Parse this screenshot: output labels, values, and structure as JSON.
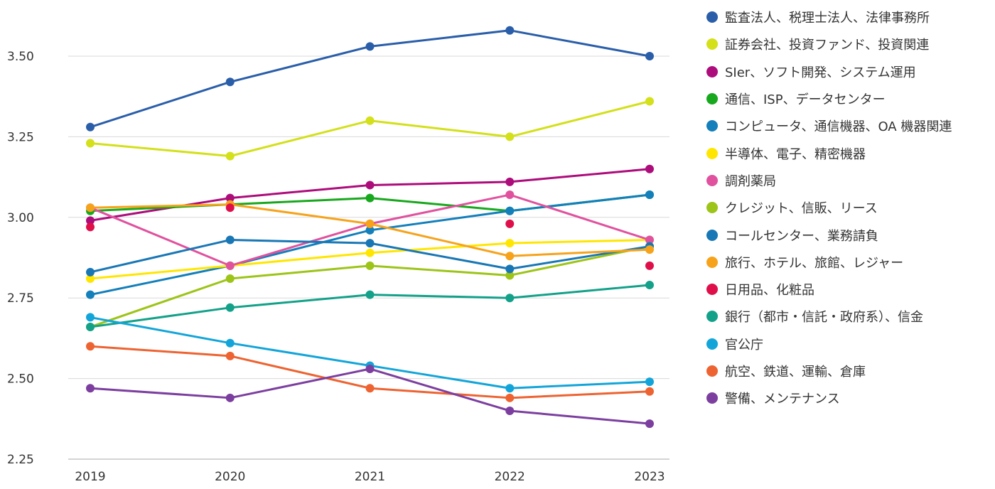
{
  "chart_data": {
    "type": "line",
    "x": [
      "2019",
      "2020",
      "2021",
      "2022",
      "2023"
    ],
    "ylim": [
      2.25,
      3.65
    ],
    "yticks": [
      "2.25",
      "2.50",
      "2.75",
      "3.00",
      "3.25",
      "3.50"
    ],
    "grid": "horizontal",
    "legend_position": "right",
    "series": [
      {
        "name": "監査法人、税理士法人、法律事務所",
        "color": "#2a5ea9",
        "values": [
          3.28,
          3.42,
          3.53,
          3.58,
          3.5
        ]
      },
      {
        "name": "証券会社、投資ファンド、投資関連",
        "color": "#d3e01a",
        "values": [
          3.23,
          3.19,
          3.3,
          3.25,
          3.36
        ]
      },
      {
        "name": "SIer、ソフト開発、システム運用",
        "color": "#ad0c7b",
        "values": [
          2.99,
          3.06,
          3.1,
          3.11,
          3.15
        ]
      },
      {
        "name": "通信、ISP、データセンター",
        "color": "#18a81d",
        "values": [
          3.02,
          3.04,
          3.06,
          3.02,
          3.07
        ]
      },
      {
        "name": "コンピュータ、通信機器、OA 機器関連",
        "color": "#137fbb",
        "values": [
          2.76,
          2.85,
          2.96,
          3.02,
          3.07
        ]
      },
      {
        "name": "半導体、電子、精密機器",
        "color": "#ffe600",
        "values": [
          2.81,
          2.85,
          2.89,
          2.92,
          2.93
        ]
      },
      {
        "name": "調剤薬局",
        "color": "#e0529e",
        "values": [
          3.03,
          2.85,
          2.98,
          3.07,
          2.93
        ]
      },
      {
        "name": "クレジット、信販、リース",
        "color": "#9dc418",
        "values": [
          2.66,
          2.81,
          2.85,
          2.82,
          2.91
        ]
      },
      {
        "name": "コールセンター、業務請負",
        "color": "#1977b5",
        "values": [
          2.83,
          2.93,
          2.92,
          2.84,
          2.91
        ]
      },
      {
        "name": "旅行、ホテル、旅館、レジャー",
        "color": "#f6a31b",
        "values": [
          3.03,
          3.04,
          2.98,
          2.88,
          2.9
        ]
      },
      {
        "name": "日用品、化粧品",
        "color": "#df0f4a",
        "values": [
          2.97,
          3.03,
          null,
          2.98,
          2.85
        ]
      },
      {
        "name": "銀行（都市・信託・政府系）、信金",
        "color": "#13a18a",
        "values": [
          2.66,
          2.72,
          2.76,
          2.75,
          2.79
        ]
      },
      {
        "name": "官公庁",
        "color": "#13a5d9",
        "values": [
          2.69,
          2.61,
          2.54,
          2.47,
          2.49
        ]
      },
      {
        "name": "航空、鉄道、運輸、倉庫",
        "color": "#ed6331",
        "values": [
          2.6,
          2.57,
          2.47,
          2.44,
          2.46
        ]
      },
      {
        "name": "警備、メンテナンス",
        "color": "#7c3f9f",
        "values": [
          2.47,
          2.44,
          2.53,
          2.4,
          2.36
        ]
      }
    ]
  }
}
